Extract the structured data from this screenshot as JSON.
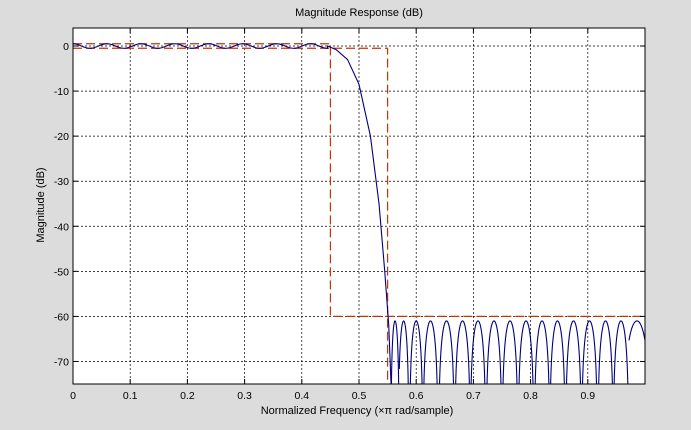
{
  "chart_data": {
    "type": "line",
    "title": "Magnitude Response (dB)",
    "xlabel": "Normalized Frequency (×π rad/sample)",
    "ylabel": "Magnitude (dB)",
    "xlim": [
      0,
      1
    ],
    "ylim": [
      -75,
      4
    ],
    "xticks": [
      0,
      0.1,
      0.2,
      0.3,
      0.4,
      0.5,
      0.6,
      0.7,
      0.8,
      0.9
    ],
    "xtick_labels": [
      "0",
      "0.1",
      "0.2",
      "0.3",
      "0.4",
      "0.5",
      "0.6",
      "0.7",
      "0.8",
      "0.9"
    ],
    "yticks": [
      0,
      -10,
      -20,
      -30,
      -40,
      -50,
      -60,
      -70
    ],
    "ytick_labels": [
      "0",
      "-10",
      "-20",
      "-30",
      "-40",
      "-50",
      "-60",
      "-70"
    ],
    "grid": true,
    "background": "#ffffff",
    "colors": {
      "response": "#000080",
      "mask": "#cc3300",
      "figure_bg": "#dcdcdc"
    },
    "series": [
      {
        "style": "solid",
        "color": "#000080",
        "passband": {
          "x_start": 0,
          "x_end": 0.445,
          "ripple_db": 0.5,
          "ripple_cycles": 7.5
        },
        "transition": [
          [
            0.445,
            0
          ],
          [
            0.46,
            -0.8
          ],
          [
            0.48,
            -3
          ],
          [
            0.5,
            -8.5
          ],
          [
            0.52,
            -20
          ],
          [
            0.535,
            -35
          ],
          [
            0.545,
            -50
          ],
          [
            0.552,
            -62
          ],
          [
            0.556,
            -75
          ]
        ],
        "stopband": {
          "x_start": 0.556,
          "x_end": 1.0,
          "lobe_peak_db": -61,
          "lobe_centers": [
            0.563,
            0.578,
            0.6,
            0.625,
            0.653,
            0.681,
            0.708,
            0.736,
            0.764,
            0.792,
            0.82,
            0.847,
            0.875,
            0.903,
            0.931,
            0.958,
            0.986
          ]
        }
      },
      {
        "style": "dashed",
        "color": "#cc3300",
        "segments": [
          [
            [
              0,
              0.5
            ],
            [
              0.45,
              0.5
            ],
            [
              0.45,
              -60
            ],
            [
              1.0,
              -60
            ]
          ],
          [
            [
              0,
              -0.5
            ],
            [
              0.55,
              -0.5
            ],
            [
              0.55,
              -75
            ]
          ]
        ]
      }
    ]
  }
}
